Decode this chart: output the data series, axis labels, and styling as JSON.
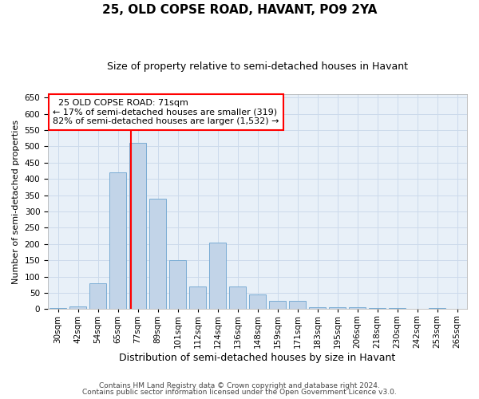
{
  "title": "25, OLD COPSE ROAD, HAVANT, PO9 2YA",
  "subtitle": "Size of property relative to semi-detached houses in Havant",
  "xlabel": "Distribution of semi-detached houses by size in Havant",
  "ylabel": "Number of semi-detached properties",
  "footer1": "Contains HM Land Registry data © Crown copyright and database right 2024.",
  "footer2": "Contains public sector information licensed under the Open Government Licence v3.0.",
  "categories": [
    "30sqm",
    "42sqm",
    "54sqm",
    "65sqm",
    "77sqm",
    "89sqm",
    "101sqm",
    "112sqm",
    "124sqm",
    "136sqm",
    "148sqm",
    "159sqm",
    "171sqm",
    "183sqm",
    "195sqm",
    "206sqm",
    "218sqm",
    "230sqm",
    "242sqm",
    "253sqm",
    "265sqm"
  ],
  "values": [
    3,
    8,
    80,
    420,
    510,
    340,
    150,
    70,
    205,
    70,
    45,
    25,
    25,
    5,
    5,
    5,
    3,
    3,
    0,
    3,
    0
  ],
  "bar_color": "#c2d4e8",
  "bar_edge_color": "#7aacd4",
  "grid_color": "#ccdaeb",
  "background_color": "#e8f0f8",
  "property_label": "25 OLD COPSE ROAD: 71sqm",
  "pct_smaller": 17,
  "n_smaller": 319,
  "pct_larger": 82,
  "n_larger": 1532,
  "red_line_x": 3.65,
  "ylim_max": 660,
  "ytick_step": 50,
  "title_fontsize": 11,
  "subtitle_fontsize": 9,
  "xlabel_fontsize": 9,
  "ylabel_fontsize": 8,
  "annot_fontsize": 8,
  "footer_fontsize": 6.5,
  "tick_fontsize": 7.5
}
